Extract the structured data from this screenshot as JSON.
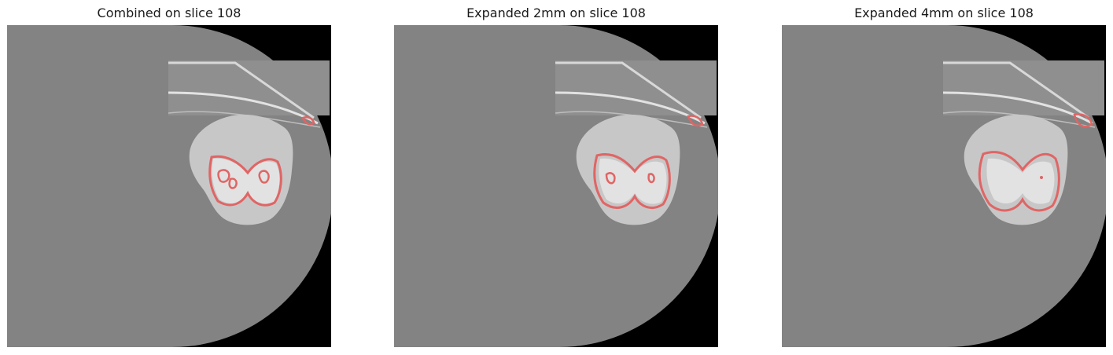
{
  "panels": [
    {
      "title": "Combined on slice 108",
      "slice": 108,
      "overlay_variant": "combined"
    },
    {
      "title": "Expanded 2mm on slice 108",
      "slice": 108,
      "overlay_variant": "expanded_2mm"
    },
    {
      "title": "Expanded 4mm on slice 108",
      "slice": 108,
      "overlay_variant": "expanded_4mm"
    }
  ],
  "colors": {
    "background": "#000000",
    "fov": "#838383",
    "tissue": "#c9c9c9",
    "contour": "#e06565"
  }
}
